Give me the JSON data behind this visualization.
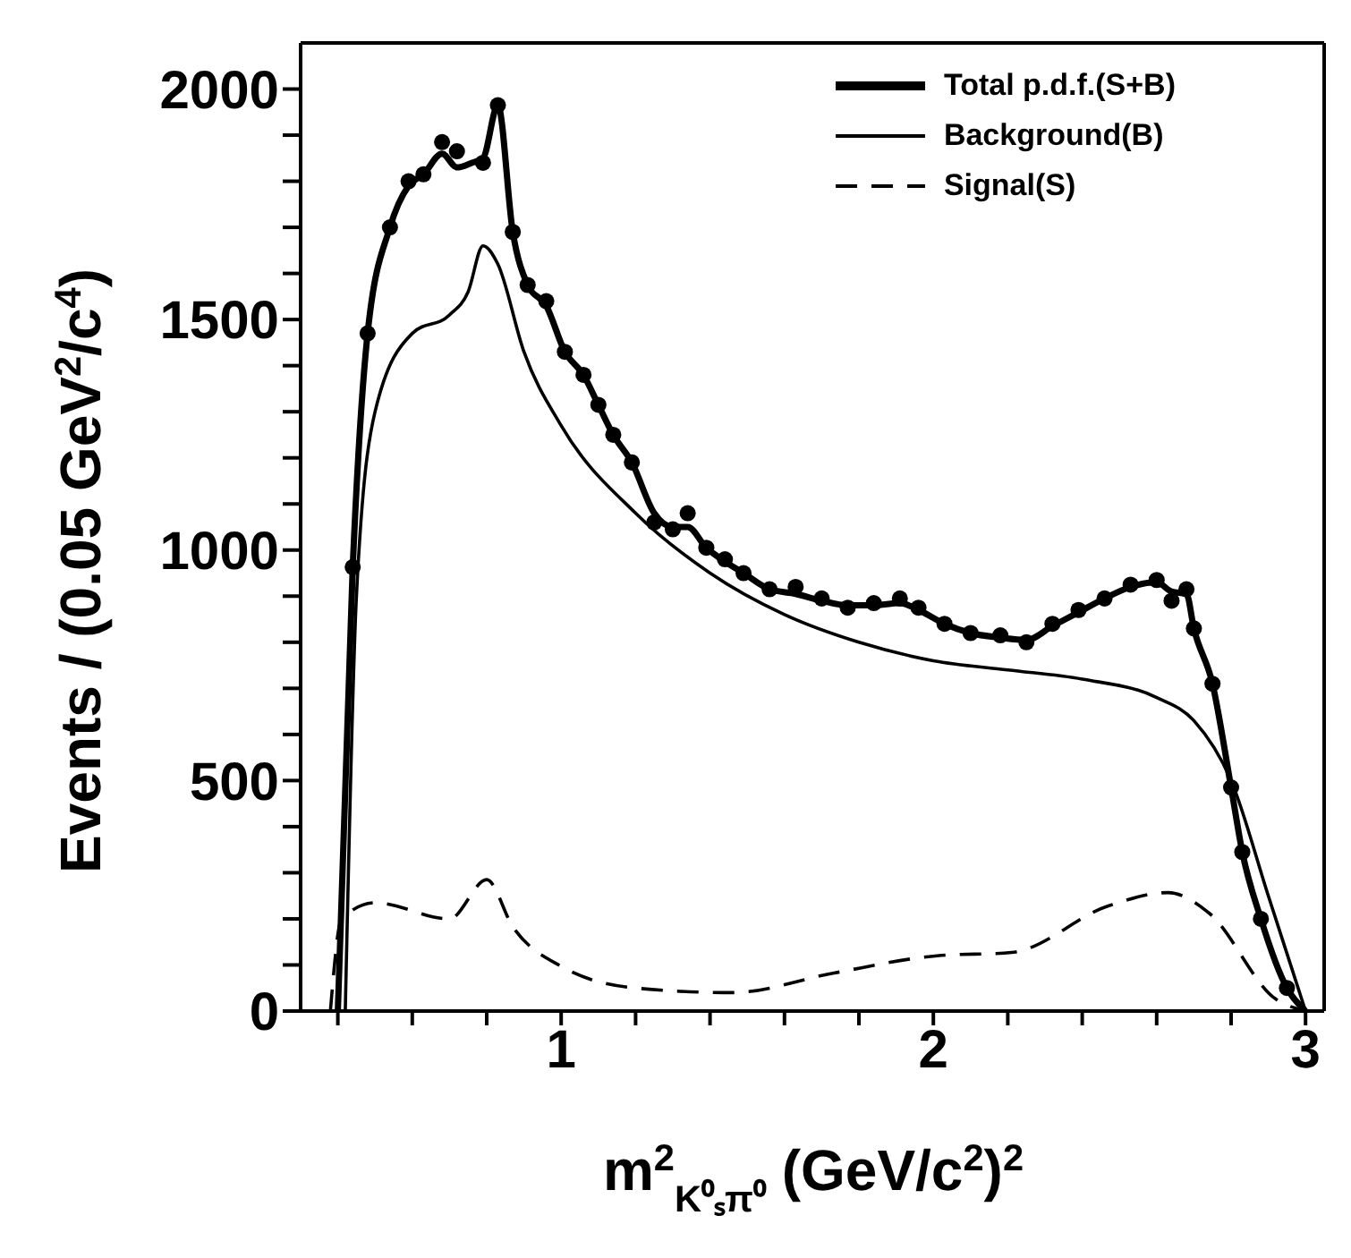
{
  "chart_data": {
    "type": "line",
    "xlabel": "m$^{2}$$_{K⁰ₛπ⁰}$  (GeV/c$^{2}$)$^{2}$",
    "ylabel": "Events / (0.05 GeV$^{2}$/c$^{4}$)",
    "xlim": [
      0.3,
      3.05
    ],
    "ylim": [
      0,
      2100
    ],
    "xticks": [
      {
        "value": 0.4,
        "label": null
      },
      {
        "value": 0.6,
        "label": null
      },
      {
        "value": 0.8,
        "label": null
      },
      1,
      {
        "value": 1.2,
        "label": null
      },
      {
        "value": 1.4,
        "label": null
      },
      {
        "value": 1.6,
        "label": null
      },
      {
        "value": 1.8,
        "label": null
      },
      2,
      {
        "value": 2.2,
        "label": null
      },
      {
        "value": 2.4,
        "label": null
      },
      {
        "value": 2.6,
        "label": null
      },
      {
        "value": 2.8,
        "label": null
      },
      3
    ],
    "yticks": [
      0,
      {
        "value": 100,
        "label": null
      },
      {
        "value": 200,
        "label": null
      },
      {
        "value": 300,
        "label": null
      },
      {
        "value": 400,
        "label": null
      },
      500,
      {
        "value": 600,
        "label": null
      },
      {
        "value": 700,
        "label": null
      },
      {
        "value": 800,
        "label": null
      },
      {
        "value": 900,
        "label": null
      },
      1000,
      {
        "value": 1100,
        "label": null
      },
      {
        "value": 1200,
        "label": null
      },
      {
        "value": 1300,
        "label": null
      },
      {
        "value": 1400,
        "label": null
      },
      1500,
      {
        "value": 1600,
        "label": null
      },
      {
        "value": 1700,
        "label": null
      },
      {
        "value": 1800,
        "label": null
      },
      {
        "value": 1900,
        "label": null
      },
      2000
    ],
    "grid": false,
    "legend": "top right",
    "series": [
      {
        "name": "Total p.d.f.(S+B)",
        "color": "#000000",
        "line_style": "solid",
        "marker": "none",
        "x": [
          0.4,
          0.44,
          0.48,
          0.54,
          0.59,
          0.63,
          0.68,
          0.72,
          0.76,
          0.79,
          0.83,
          0.87,
          0.91,
          0.96,
          1.01,
          1.06,
          1.1,
          1.14,
          1.19,
          1.25,
          1.3,
          1.34,
          1.39,
          1.44,
          1.49,
          1.56,
          1.63,
          1.7,
          1.77,
          1.84,
          1.91,
          1.96,
          2.03,
          2.1,
          2.18,
          2.25,
          2.32,
          2.39,
          2.46,
          2.53,
          2.6,
          2.64,
          2.68,
          2.7,
          2.75,
          2.8,
          2.83,
          2.88,
          2.95,
          3.0
        ],
        "values": [
          0,
          963,
          1470,
          1700,
          1790,
          1815,
          1860,
          1830,
          1840,
          1850,
          1965,
          1690,
          1575,
          1530,
          1430,
          1380,
          1315,
          1250,
          1190,
          1080,
          1050,
          1050,
          1005,
          975,
          950,
          915,
          905,
          890,
          880,
          880,
          885,
          870,
          840,
          820,
          810,
          805,
          835,
          865,
          895,
          920,
          930,
          910,
          905,
          830,
          710,
          485,
          345,
          200,
          50,
          0
        ]
      },
      {
        "name": "Background(B)",
        "color": "#000000",
        "line_style": "solid",
        "marker": "none",
        "x": [
          0.42,
          0.45,
          0.5,
          0.6,
          0.7,
          0.75,
          0.79,
          0.83,
          0.9,
          1.0,
          1.2,
          1.4,
          1.6,
          1.8,
          2.0,
          2.2,
          2.4,
          2.6,
          2.7,
          2.8,
          2.9,
          3.0
        ],
        "values": [
          0,
          900,
          1300,
          1470,
          1510,
          1560,
          1660,
          1620,
          1430,
          1270,
          1080,
          950,
          860,
          800,
          760,
          740,
          720,
          680,
          630,
          500,
          250,
          0
        ]
      },
      {
        "name": "Signal(S)",
        "color": "#000000",
        "line_style": "dashed",
        "marker": "none",
        "x": [
          0.38,
          0.41,
          0.5,
          0.7,
          0.8,
          0.87,
          1.0,
          1.2,
          1.46,
          1.73,
          2.01,
          2.21,
          2.47,
          2.63,
          2.74,
          2.92,
          3.0
        ],
        "values": [
          0,
          200,
          235,
          200,
          285,
          183,
          97,
          50,
          40,
          82,
          120,
          127,
          228,
          257,
          213,
          26,
          0
        ]
      },
      {
        "type": "scatter",
        "color": "#000000",
        "marker": "circle",
        "x": [
          0.44,
          0.48,
          0.54,
          0.59,
          0.63,
          0.68,
          0.72,
          0.79,
          0.83,
          0.87,
          0.91,
          0.96,
          1.01,
          1.06,
          1.1,
          1.14,
          1.19,
          1.25,
          1.3,
          1.34,
          1.39,
          1.44,
          1.49,
          1.56,
          1.63,
          1.7,
          1.77,
          1.84,
          1.91,
          1.96,
          2.03,
          2.1,
          2.18,
          2.25,
          2.32,
          2.39,
          2.46,
          2.53,
          2.6,
          2.64,
          2.68,
          2.7,
          2.75,
          2.8,
          2.83,
          2.88,
          2.95
        ],
        "values": [
          963,
          1470,
          1700,
          1800,
          1815,
          1885,
          1865,
          1840,
          1965,
          1690,
          1575,
          1540,
          1430,
          1380,
          1315,
          1250,
          1190,
          1060,
          1045,
          1080,
          1005,
          980,
          950,
          915,
          920,
          895,
          875,
          885,
          895,
          875,
          840,
          820,
          815,
          800,
          840,
          870,
          895,
          925,
          935,
          890,
          915,
          830,
          710,
          485,
          345,
          200,
          50
        ]
      }
    ]
  }
}
